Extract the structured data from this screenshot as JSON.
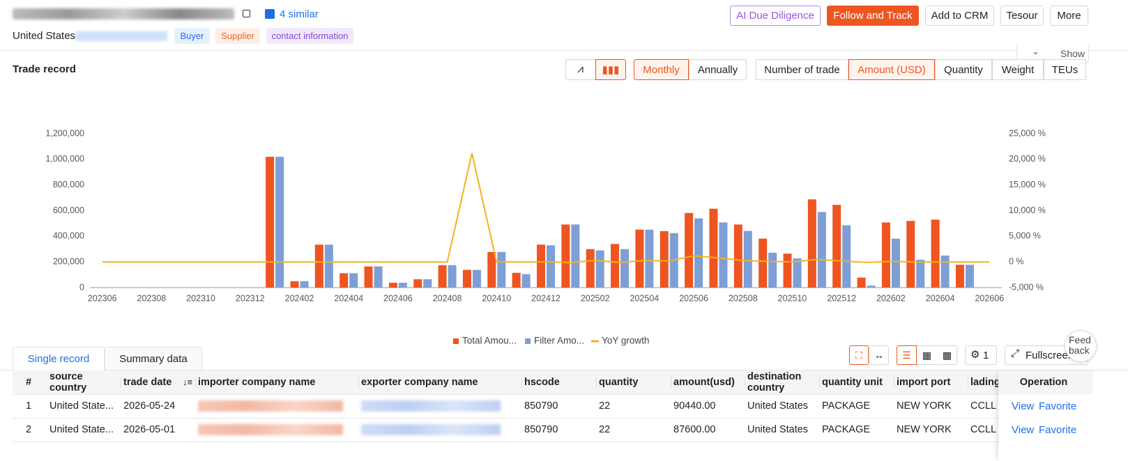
{
  "header": {
    "similar": "4 similar",
    "country": "United States",
    "tags": [
      "Buyer",
      "Supplier",
      "contact information"
    ],
    "actions": [
      "AI Due Diligence",
      "Follow and Track",
      "Add to CRM",
      "Tesour",
      "More"
    ],
    "show": "Show"
  },
  "section_title": "Trade record",
  "period_options": [
    "Monthly",
    "Annually"
  ],
  "metric_options": [
    "Number of trade",
    "Amount (USD)",
    "Quantity",
    "Weight",
    "TEUs"
  ],
  "chart_data": {
    "type": "bar",
    "categories": [
      "202306",
      null,
      "202308",
      null,
      "202310",
      null,
      "202312",
      null,
      "202402",
      null,
      "202404",
      null,
      "202406",
      null,
      "202408",
      null,
      "202410",
      null,
      "202412",
      null,
      "202502",
      null,
      "202504",
      null,
      "202506",
      null,
      "202508",
      null,
      "202510",
      null,
      "202512",
      null,
      "202602",
      null,
      "202604",
      null,
      "202606"
    ],
    "series": [
      {
        "name": "Total Amou...",
        "color": "#ee5520",
        "values": [
          0,
          0,
          0,
          0,
          0,
          0,
          0,
          1020000,
          50000,
          335000,
          112000,
          165000,
          38000,
          65000,
          175000,
          138000,
          278000,
          115000,
          335000,
          492000,
          300000,
          340000,
          452000,
          440000,
          582000,
          615000,
          492000,
          382000,
          265000,
          688000,
          645000,
          78000,
          508000,
          520000,
          530000,
          178000,
          0
        ]
      },
      {
        "name": "Filter Amo...",
        "color": "#7e9fd5",
        "values": [
          0,
          0,
          0,
          0,
          0,
          0,
          0,
          1020000,
          50000,
          335000,
          112000,
          165000,
          38000,
          65000,
          175000,
          138000,
          278000,
          105000,
          330000,
          492000,
          290000,
          300000,
          452000,
          425000,
          540000,
          508000,
          442000,
          272000,
          228000,
          590000,
          486000,
          15000,
          382000,
          217000,
          250000,
          178000,
          0
        ]
      },
      {
        "name": "YoY growth",
        "color": "#f5b21c",
        "axis": "y2",
        "type": "line",
        "values": [
          0,
          0,
          0,
          0,
          0,
          0,
          0,
          0,
          0,
          0,
          0,
          0,
          0,
          0,
          0,
          21200,
          0,
          0,
          0,
          -100,
          300,
          -100,
          300,
          200,
          1200,
          800,
          300,
          100,
          0,
          500,
          200,
          -100,
          100,
          0,
          0,
          0,
          0
        ]
      }
    ],
    "ylim": [
      0,
      1200000
    ],
    "yticks": [
      {
        "value": 0,
        "label": "0"
      },
      {
        "value": 200000,
        "label": "200,000"
      },
      {
        "value": 400000,
        "label": "400,000"
      },
      {
        "value": 600000,
        "label": "600,000"
      },
      {
        "value": 800000,
        "label": "800,000"
      },
      {
        "value": 1000000,
        "label": "1,000,000"
      },
      {
        "value": 1200000,
        "label": "1,200,000"
      }
    ],
    "y2lim": [
      -5000,
      25000
    ],
    "y2ticks": [
      {
        "value": -5000,
        "label": "-5,000 %"
      },
      {
        "value": 0,
        "label": "0 %"
      },
      {
        "value": 5000,
        "label": "5,000 %"
      },
      {
        "value": 10000,
        "label": "10,000 %"
      },
      {
        "value": 15000,
        "label": "15,000 %"
      },
      {
        "value": 20000,
        "label": "20,000 %"
      },
      {
        "value": 25000,
        "label": "25,000 %"
      }
    ],
    "grid": false,
    "legend": "bottom"
  },
  "tabs": [
    "Single record",
    "Summary data"
  ],
  "toolbar": {
    "settings_count": "1",
    "fullscreen": "Fullscreen"
  },
  "feedback": "Feed back",
  "table": {
    "columns": [
      "#",
      "source country",
      "trade date",
      "importer company name",
      "exporter company name",
      "hscode",
      "quantity",
      "amount(usd)",
      "destination country",
      "quantity unit",
      "import port",
      "lading",
      "Operation"
    ],
    "rows": [
      [
        "1",
        "United State...",
        "2026-05-24",
        "850790",
        "22",
        "90440.00",
        "United States",
        "PACKAGE",
        "NEW YORK",
        "CCLL"
      ],
      [
        "2",
        "United State...",
        "2026-05-01",
        "850790",
        "22",
        "87600.00",
        "United States",
        "PACKAGE",
        "NEW YORK",
        "CCLL"
      ]
    ],
    "actions": [
      "View",
      "Favorite"
    ]
  }
}
